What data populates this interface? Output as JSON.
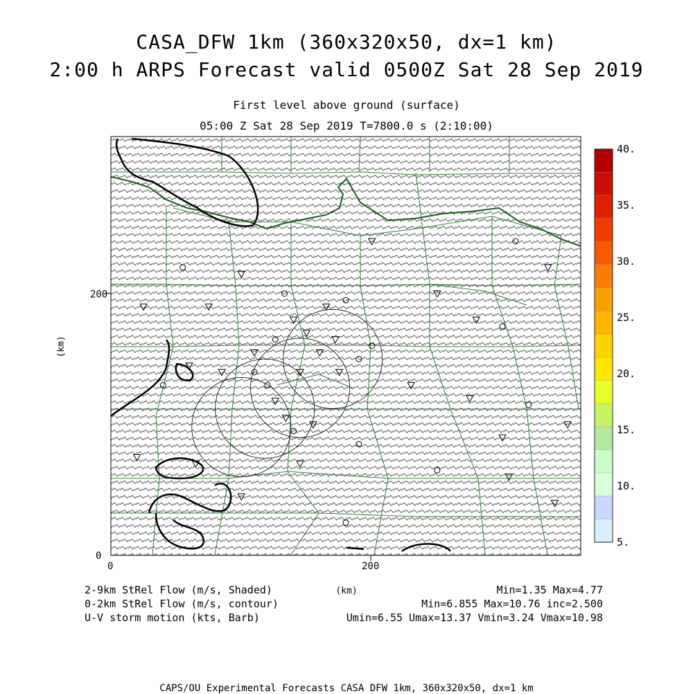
{
  "title": {
    "line1": "CASA_DFW 1km (360x320x50, dx=1 km)",
    "line2": "2:00 h ARPS Forecast valid 0500Z Sat 28 Sep 2019"
  },
  "subtitle": {
    "line1": "First level above ground (surface)",
    "line2": "05:00 Z Sat 28 Sep 2019   T=7800.0 s (2:10:00)"
  },
  "axes": {
    "x_label": "(km)",
    "y_label": "(km)",
    "x_ticks": [
      "0",
      "200"
    ],
    "y_ticks": [
      "0",
      "200"
    ],
    "x_range": [
      0,
      360
    ],
    "y_range": [
      0,
      320
    ]
  },
  "colorbar": {
    "labels": [
      "40.",
      "35.",
      "30.",
      "25.",
      "20.",
      "15.",
      "10.",
      "5."
    ],
    "colors": [
      "#b40000",
      "#cc0e00",
      "#e02000",
      "#f03c00",
      "#f85a00",
      "#fa7c00",
      "#fc9e00",
      "#feb400",
      "#ffd200",
      "#ffe800",
      "#eaff2a",
      "#c8f464",
      "#b4eaa0",
      "#c8ffc8",
      "#dcffdc",
      "#c8d8ff",
      "#d8f0ff"
    ]
  },
  "legend": {
    "shaded": "2-9km StRel Flow (m/s, Shaded)",
    "contour": "0-2km StRel Flow (m/s, contour)",
    "barb": "U-V storm motion (kts, Barb)",
    "shaded_stats": "Min=1.35 Max=4.77",
    "contour_stats": "Min=6.855 Max=10.76 inc=2.500",
    "barb_stats": "Umin=6.55 Umax=13.37 Vmin=3.24 Vmax=10.98"
  },
  "footer": "CAPS/OU Experimental Forecasts  CASA DFW 1km, 360x320x50, dx=1 km",
  "colors": {
    "county_lines": "#2e7d32",
    "contour": "#000000",
    "barbs": "#333333"
  },
  "radar_rings_km": [
    {
      "x": 118,
      "y": 112,
      "r": 38
    },
    {
      "x": 145,
      "y": 128,
      "r": 38
    },
    {
      "x": 170,
      "y": 150,
      "r": 38
    },
    {
      "x": 100,
      "y": 98,
      "r": 38
    }
  ],
  "stations_km": [
    [
      133,
      200
    ],
    [
      140,
      180
    ],
    [
      150,
      170
    ],
    [
      126,
      165
    ],
    [
      110,
      155
    ],
    [
      85,
      140
    ],
    [
      120,
      130
    ],
    [
      126,
      118
    ],
    [
      134,
      105
    ],
    [
      140,
      95
    ],
    [
      155,
      100
    ],
    [
      175,
      140
    ],
    [
      190,
      150
    ],
    [
      160,
      155
    ],
    [
      165,
      190
    ],
    [
      180,
      195
    ],
    [
      250,
      200
    ],
    [
      280,
      180
    ],
    [
      300,
      175
    ],
    [
      75,
      190
    ],
    [
      25,
      190
    ],
    [
      55,
      220
    ],
    [
      100,
      215
    ],
    [
      200,
      240
    ],
    [
      310,
      240
    ],
    [
      335,
      220
    ],
    [
      60,
      145
    ],
    [
      40,
      130
    ],
    [
      65,
      70
    ],
    [
      20,
      75
    ],
    [
      110,
      140
    ],
    [
      145,
      140
    ],
    [
      172,
      165
    ],
    [
      200,
      160
    ],
    [
      230,
      130
    ],
    [
      275,
      120
    ],
    [
      320,
      115
    ],
    [
      350,
      100
    ],
    [
      300,
      90
    ],
    [
      250,
      65
    ],
    [
      305,
      60
    ],
    [
      340,
      40
    ],
    [
      180,
      25
    ],
    [
      100,
      45
    ],
    [
      145,
      70
    ],
    [
      190,
      85
    ]
  ]
}
